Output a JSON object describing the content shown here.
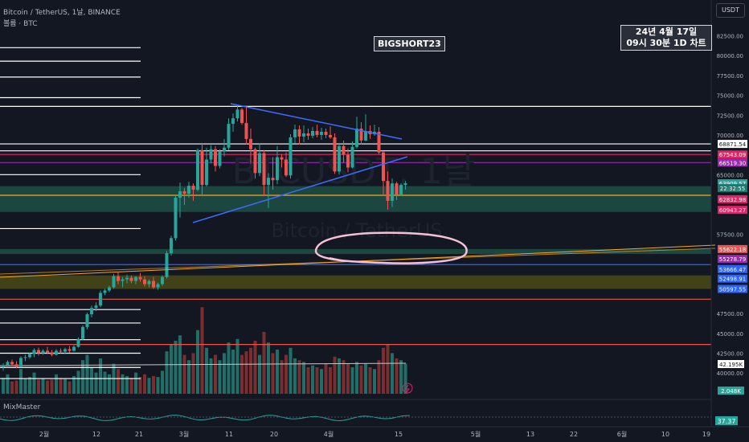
{
  "header": {
    "symbol_line": "Bitcoin / TetherUS, 1날, BINANCE",
    "volume_line": "볼륨 · BTC",
    "currency_button": "USDT"
  },
  "annotations": {
    "author_tag": "BIGSHORT23",
    "date_line1": "24년 4월 17일",
    "date_line2": "09시 30분 1D 차트"
  },
  "watermark": {
    "ticker": "BTCUSDT, 1날",
    "name": "Bitcoin / TetherUS"
  },
  "indicator": {
    "name": "MixMaster",
    "value": "37.37"
  },
  "price_axis": {
    "ticks": [
      "82500.00",
      "80000.00",
      "77500.00",
      "75000.00",
      "72500.00",
      "70000.00",
      "65000.00",
      "57500.00",
      "47500.00",
      "45000.00",
      "42500.00",
      "40000.00"
    ]
  },
  "price_labels": [
    {
      "text": "68871.54",
      "price": 68871.54,
      "bg": "#ffffff",
      "fg": "#131722"
    },
    {
      "text": "67543.09",
      "price": 67543.09,
      "bg": "#e91e63",
      "fg": "#ffffff"
    },
    {
      "text": "66519.30",
      "price": 66519.3,
      "bg": "#9c27b0",
      "fg": "#ffffff"
    },
    {
      "text": "63909.57",
      "price": 63909.57,
      "bg": "#26a69a",
      "fg": "#ffffff"
    },
    {
      "text": "22:32:55",
      "price": 63300,
      "bg": "#1b7a6f",
      "fg": "#ffffff"
    },
    {
      "text": "62832.98",
      "price": 61900,
      "bg": "#e91e63",
      "fg": "#ffffff"
    },
    {
      "text": "60943.27",
      "price": 60560,
      "bg": "#e91e63",
      "fg": "#ffffff"
    },
    {
      "text": "55622.18",
      "price": 55622.18,
      "bg": "#ef5350",
      "fg": "#ffffff"
    },
    {
      "text": "55278.79",
      "price": 54380,
      "bg": "#9c27b0",
      "fg": "#ffffff"
    },
    {
      "text": "53666.47",
      "price": 53100,
      "bg": "#2962ff",
      "fg": "#ffffff"
    },
    {
      "text": "52498.91",
      "price": 51900,
      "bg": "#2962ff",
      "fg": "#ffffff"
    },
    {
      "text": "50597.55",
      "price": 50597.55,
      "bg": "#2962ff",
      "fg": "#ffffff"
    }
  ],
  "side_labels": [
    {
      "text": "42.195K",
      "y": 453,
      "bg": "#ffffff",
      "fg": "#131722"
    },
    {
      "text": "2.048K",
      "y": 486,
      "bg": "#26a69a",
      "fg": "#ffffff"
    }
  ],
  "time_axis": [
    {
      "label": "2월",
      "x": 55
    },
    {
      "label": "12",
      "x": 120
    },
    {
      "label": "21",
      "x": 173
    },
    {
      "label": "3월",
      "x": 229
    },
    {
      "label": "11",
      "x": 285
    },
    {
      "label": "20",
      "x": 341
    },
    {
      "label": "4월",
      "x": 409
    },
    {
      "label": "15",
      "x": 496
    },
    {
      "label": "5월",
      "x": 592
    },
    {
      "label": "13",
      "x": 660
    },
    {
      "label": "22",
      "x": 714
    },
    {
      "label": "6월",
      "x": 774
    },
    {
      "label": "10",
      "x": 828
    },
    {
      "label": "19",
      "x": 879
    }
  ],
  "levels": [
    {
      "price": 81000,
      "color": "#ffffff",
      "x2": 175
    },
    {
      "price": 79300,
      "color": "#ffffff",
      "x2": 175
    },
    {
      "price": 77300,
      "color": "#ffffff",
      "x2": 175
    },
    {
      "price": 74700,
      "color": "#ffffff",
      "x2": 175
    },
    {
      "price": 73600,
      "color": "#ffffff",
      "x2": 885
    },
    {
      "price": 68871.54,
      "color": "#ffffff",
      "x2": 885
    },
    {
      "price": 68000,
      "color": "#ffffff",
      "x2": 885
    },
    {
      "price": 67543.09,
      "color": "#e91e63",
      "x2": 885
    },
    {
      "price": 66519.3,
      "color": "#9c27b0",
      "x2": 885
    },
    {
      "price": 65000,
      "color": "#ffffff",
      "x2": 175
    },
    {
      "price": 62400,
      "color": "#f5a623",
      "x2": 885
    },
    {
      "price": 58200,
      "color": "#ffffff",
      "x2": 175
    },
    {
      "price": 53666.47,
      "color": "#2962ff",
      "x2": 885
    },
    {
      "price": 49300,
      "color": "#ef5350",
      "x2": 885
    },
    {
      "price": 48000,
      "color": "#ffffff",
      "x2": 175
    },
    {
      "price": 46300,
      "color": "#ffffff",
      "x2": 175
    },
    {
      "price": 44200,
      "color": "#ffffff",
      "x2": 175
    },
    {
      "price": 43600,
      "color": "#ef5350",
      "x2": 885
    },
    {
      "price": 42500,
      "color": "#ffffff",
      "x2": 175
    },
    {
      "price": 40700,
      "color": "#ffffff",
      "x2": 175
    },
    {
      "price": 39300,
      "color": "#ffffff",
      "x2": 175
    }
  ],
  "zones": [
    {
      "p1": 63550,
      "p2": 60300,
      "color": "#1f4f45"
    },
    {
      "p1": 55622.18,
      "p2": 55000,
      "color": "#1f4f45"
    },
    {
      "p1": 52300,
      "p2": 50597.55,
      "color": "#4a4a15"
    }
  ],
  "colors": {
    "up": "#26a69a",
    "down": "#ef5350",
    "background": "#131722",
    "trendline": "#3d6cff",
    "circle": "#f4c2d6"
  },
  "candles": [
    [
      40800,
      41200,
      40300,
      41000
    ],
    [
      41000,
      41600,
      40700,
      41400
    ],
    [
      41400,
      41700,
      40900,
      41100
    ],
    [
      41100,
      41500,
      40600,
      40800
    ],
    [
      40800,
      42100,
      40700,
      41900
    ],
    [
      41900,
      42300,
      41500,
      42000
    ],
    [
      42000,
      42600,
      41800,
      42400
    ],
    [
      42400,
      43100,
      42000,
      42900
    ],
    [
      42900,
      43200,
      42200,
      42500
    ],
    [
      42500,
      43000,
      42300,
      42800
    ],
    [
      42800,
      43300,
      42400,
      42600
    ],
    [
      42600,
      42900,
      42100,
      42300
    ],
    [
      42300,
      43000,
      42200,
      42800
    ],
    [
      42800,
      43100,
      42500,
      42700
    ],
    [
      42700,
      43200,
      42400,
      43000
    ],
    [
      43000,
      43400,
      42600,
      42800
    ],
    [
      42800,
      43500,
      42700,
      43300
    ],
    [
      43300,
      44500,
      43200,
      44300
    ],
    [
      44300,
      46000,
      44100,
      45800
    ],
    [
      45800,
      47600,
      45500,
      47400
    ],
    [
      47400,
      48500,
      47000,
      48200
    ],
    [
      48200,
      48900,
      47800,
      48500
    ],
    [
      48500,
      50400,
      48300,
      50100
    ],
    [
      50100,
      50600,
      49800,
      50400
    ],
    [
      50400,
      51000,
      50200,
      50800
    ],
    [
      50800,
      52500,
      50600,
      52200
    ],
    [
      52200,
      52700,
      51200,
      51600
    ],
    [
      51600,
      52100,
      50800,
      51800
    ],
    [
      51800,
      52400,
      51300,
      52000
    ],
    [
      52000,
      52300,
      51300,
      51600
    ],
    [
      51600,
      52200,
      51200,
      52100
    ],
    [
      52100,
      52600,
      51500,
      51800
    ],
    [
      51800,
      52200,
      50900,
      51200
    ],
    [
      51200,
      51800,
      50800,
      51600
    ],
    [
      51600,
      52100,
      50600,
      50800
    ],
    [
      50800,
      51400,
      50500,
      51200
    ],
    [
      51200,
      52300,
      51000,
      52100
    ],
    [
      52100,
      55400,
      51900,
      55100
    ],
    [
      55100,
      57300,
      54800,
      57000
    ],
    [
      57000,
      62400,
      56700,
      62100
    ],
    [
      62100,
      64000,
      59600,
      62900
    ],
    [
      62900,
      63300,
      61200,
      62600
    ],
    [
      62600,
      64100,
      62100,
      63600
    ],
    [
      63600,
      63900,
      61700,
      63100
    ],
    [
      63100,
      68300,
      62900,
      68100
    ],
    [
      68100,
      69000,
      62500,
      63700
    ],
    [
      63700,
      68400,
      63500,
      66900
    ],
    [
      66900,
      68700,
      66400,
      68200
    ],
    [
      68200,
      68600,
      65400,
      66100
    ],
    [
      66100,
      68200,
      65800,
      67900
    ],
    [
      67900,
      69500,
      67300,
      68400
    ],
    [
      68400,
      72100,
      68100,
      71400
    ],
    [
      71400,
      72700,
      70400,
      72100
    ],
    [
      72100,
      73800,
      71700,
      73200
    ],
    [
      73200,
      73400,
      71300,
      71500
    ],
    [
      71500,
      73600,
      68800,
      69500
    ],
    [
      69500,
      70800,
      66400,
      68200
    ],
    [
      68200,
      68400,
      64500,
      65200
    ],
    [
      65200,
      68900,
      64800,
      67700
    ],
    [
      67700,
      68100,
      62300,
      63700
    ],
    [
      63700,
      65200,
      60800,
      64600
    ],
    [
      64600,
      67200,
      63100,
      64300
    ],
    [
      64300,
      68600,
      63800,
      67200
    ],
    [
      67200,
      67600,
      65900,
      66900
    ],
    [
      66900,
      67800,
      64700,
      64900
    ],
    [
      64900,
      70100,
      64500,
      69700
    ],
    [
      69700,
      71300,
      68900,
      70700
    ],
    [
      70700,
      71200,
      68800,
      69800
    ],
    [
      69800,
      71200,
      69100,
      70200
    ],
    [
      70200,
      70800,
      69400,
      69900
    ],
    [
      69900,
      71000,
      69600,
      70500
    ],
    [
      70500,
      71300,
      69700,
      70000
    ],
    [
      70000,
      70900,
      69400,
      70400
    ],
    [
      70400,
      70800,
      69600,
      70000
    ],
    [
      70000,
      71100,
      69500,
      69700
    ],
    [
      69700,
      70200,
      65100,
      65400
    ],
    [
      65400,
      69000,
      65000,
      68600
    ],
    [
      68600,
      69300,
      66500,
      67500
    ],
    [
      67500,
      68300,
      65300,
      65900
    ],
    [
      65900,
      69200,
      65800,
      68500
    ],
    [
      68500,
      72300,
      68300,
      70800
    ],
    [
      70800,
      71600,
      68800,
      69300
    ],
    [
      69300,
      72600,
      69200,
      70500
    ],
    [
      70500,
      71200,
      69500,
      70100
    ],
    [
      70100,
      71300,
      69900,
      70400
    ],
    [
      70400,
      71000,
      67600,
      67800
    ],
    [
      67800,
      67900,
      62500,
      64200
    ],
    [
      64200,
      65400,
      60600,
      61700
    ],
    [
      61700,
      64500,
      60900,
      63900
    ],
    [
      63900,
      64100,
      61800,
      62500
    ],
    [
      62500,
      63900,
      62300,
      63700
    ],
    [
      63700,
      64200,
      63100,
      63910
    ]
  ],
  "volumes": [
    18,
    22,
    14,
    15,
    28,
    17,
    19,
    24,
    16,
    17,
    15,
    16,
    22,
    18,
    17,
    14,
    20,
    26,
    38,
    44,
    30,
    24,
    40,
    25,
    22,
    34,
    28,
    22,
    20,
    18,
    24,
    19,
    22,
    18,
    20,
    19,
    26,
    48,
    56,
    60,
    66,
    44,
    38,
    46,
    72,
    98,
    52,
    40,
    44,
    38,
    46,
    58,
    50,
    62,
    44,
    48,
    52,
    60,
    44,
    70,
    58,
    46,
    50,
    38,
    44,
    52,
    40,
    38,
    36,
    30,
    32,
    30,
    28,
    34,
    30,
    42,
    40,
    38,
    34,
    30,
    36,
    32,
    34,
    30,
    28,
    38,
    52,
    56,
    46,
    40,
    38,
    34
  ]
}
